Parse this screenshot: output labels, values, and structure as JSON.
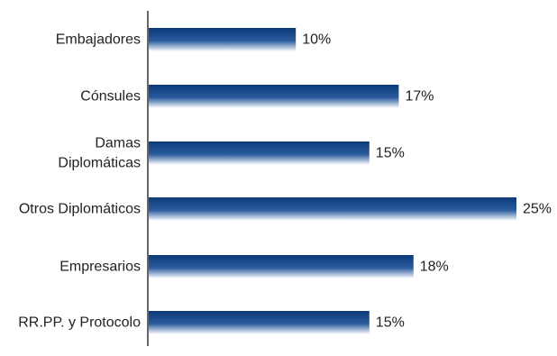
{
  "chart_data": {
    "type": "bar",
    "orientation": "horizontal",
    "categories": [
      [
        "Embajadores"
      ],
      [
        "Cónsules"
      ],
      [
        "Damas",
        "Diplomáticas"
      ],
      [
        "Otros Diplomáticos"
      ],
      [
        "Empresarios"
      ],
      [
        "RR.PP. y Protocolo"
      ]
    ],
    "values": [
      10,
      17,
      15,
      25,
      18,
      15
    ],
    "data_labels": [
      "10%",
      "17%",
      "15%",
      "25%",
      "18%",
      "15%"
    ],
    "title": "",
    "xlabel": "",
    "ylabel": "",
    "xlim": [
      0,
      25
    ],
    "grid": false,
    "legend": "none",
    "colors": {
      "bar_dark": "#0b3a78",
      "bar_mid": "#2a5c9e",
      "bar_light": "#ffffff",
      "axis": "#333333"
    }
  }
}
